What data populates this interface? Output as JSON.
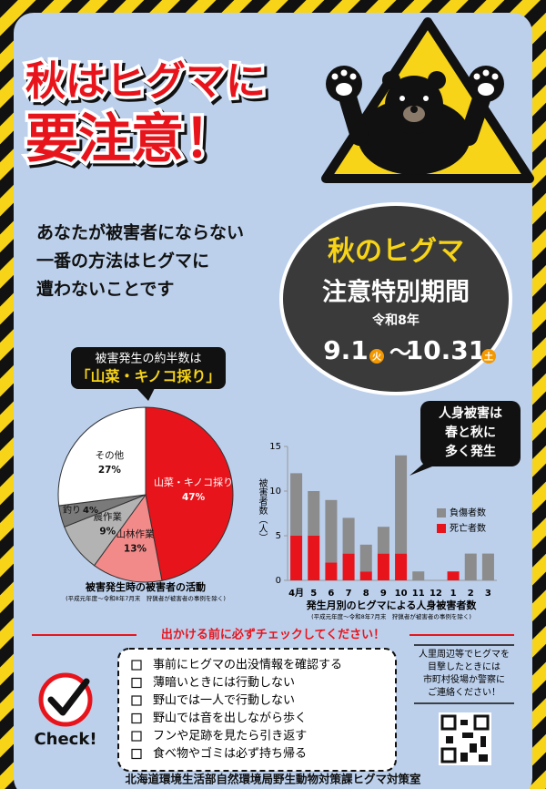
{
  "title_lines": [
    "秋はヒグマに",
    "要注意！"
  ],
  "lead": [
    "あなたが被害者にならない",
    "一番の方法はヒグマに",
    "遭わないことです"
  ],
  "period": {
    "title": "秋のヒグマ",
    "subtitle": "注意特別期間",
    "year": "令和8年",
    "start": "9.1",
    "start_day": "火",
    "separator": "～",
    "end": "10.31",
    "end_day": "土"
  },
  "chart_data": [
    {
      "type": "pie",
      "title": "被害発生時の被害者の活動",
      "note": "(平成元年度～令和8年7月末　狩猟者が被害者の事例を除く)",
      "callout": [
        "被害発生の約半数は",
        "「山菜・キノコ採り」"
      ],
      "categories": [
        "山菜・キノコ採り",
        "山林作業",
        "農作業",
        "釣り",
        "その他"
      ],
      "values": [
        47,
        13,
        9,
        4,
        27
      ],
      "value_labels": [
        "47%",
        "13%",
        "9%",
        "4%",
        "27%"
      ],
      "colors": [
        "#e8141c",
        "#f28a8a",
        "#b3b3b3",
        "#7a7a7a",
        "#ffffff"
      ]
    },
    {
      "type": "bar",
      "stacked": true,
      "title": "発生月別のヒグマによる人身被害者数",
      "note": "(平成元年度～令和8年7月末　狩猟者が被害者の事例を除く)",
      "y_label": "被害者数（人）",
      "callout": [
        "人身被害は",
        "春と秋に",
        "多く発生"
      ],
      "categories": [
        "4月",
        "5",
        "6",
        "7",
        "8",
        "9",
        "10",
        "11",
        "12",
        "1",
        "2",
        "3"
      ],
      "series": [
        {
          "name": "死亡者数",
          "color": "#e8141c",
          "values": [
            5,
            5,
            2,
            3,
            1,
            3,
            3,
            0,
            0,
            1,
            0,
            0
          ]
        },
        {
          "name": "負傷者数",
          "color": "#8c8c8c",
          "values": [
            7,
            5,
            7,
            4,
            3,
            3,
            11,
            1,
            0,
            0,
            3,
            3
          ]
        }
      ],
      "ylim": [
        0,
        15
      ],
      "yticks": [
        0,
        5,
        10,
        15
      ],
      "grid": false
    }
  ],
  "checklist": {
    "heading": "出かける前に必ずチェックしてください！",
    "items": [
      "事前にヒグマの出没情報を確認する",
      "薄暗いときには行動しない",
      "野山では一人で行動しない",
      "野山では音を出しながら歩く",
      "フンや足跡を見たら引き返す",
      "食べ物やゴミは必ず持ち帰る"
    ],
    "badge": "Check!"
  },
  "contact": [
    "人里周辺等でヒグマを",
    "目撃したときには",
    "市町村役場か警察に",
    "ご連絡ください！"
  ],
  "footer": "北海道環境生活部自然環境局野生動物対策課ヒグマ対策室"
}
